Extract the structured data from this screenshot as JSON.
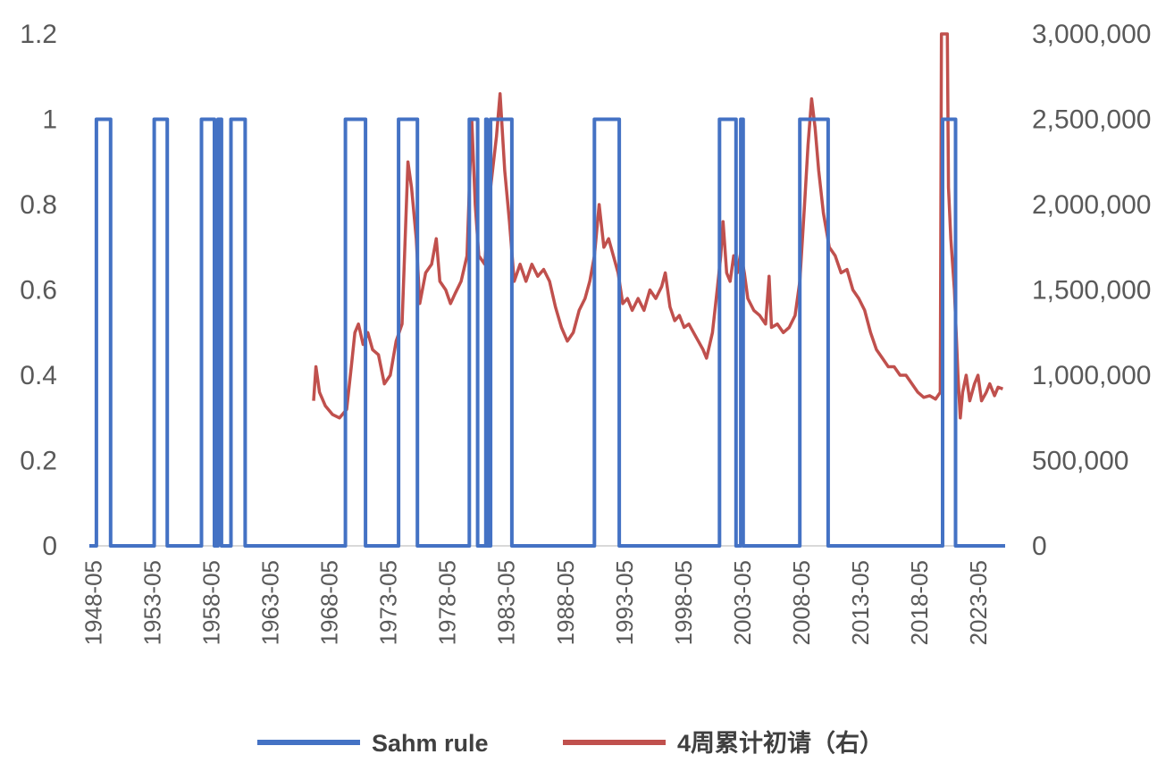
{
  "chart_data": {
    "type": "line",
    "title": "",
    "xlabel": "",
    "ylabel": "",
    "x_ticks": [
      "1948-05",
      "1953-05",
      "1958-05",
      "1963-05",
      "1968-05",
      "1973-05",
      "1978-05",
      "1983-05",
      "1988-05",
      "1993-05",
      "1998-05",
      "2003-05",
      "2008-05",
      "2013-05",
      "2018-05",
      "2023-05"
    ],
    "x_range": [
      1948.0,
      2025.6
    ],
    "y_left": {
      "ticks": [
        "0",
        "0.2",
        "0.4",
        "0.6",
        "0.8",
        "1",
        "1.2"
      ],
      "ylim": [
        0,
        1.2
      ]
    },
    "y_right": {
      "ticks": [
        "0",
        "500,000",
        "1,000,000",
        "1,500,000",
        "2,000,000",
        "2,500,000",
        "3,000,000"
      ],
      "ylim": [
        0,
        3000000
      ]
    },
    "grid": false,
    "legend_position": "bottom",
    "colors": {
      "sahm": "#4472C4",
      "claims": "#C0504D",
      "axis": "#D9D9D9",
      "text": "#595959"
    },
    "series": [
      {
        "name": "Sahm rule",
        "axis": "left",
        "step": true,
        "points": [
          [
            1948.0,
            0
          ],
          [
            1948.6,
            0
          ],
          [
            1948.6,
            1
          ],
          [
            1949.8,
            1
          ],
          [
            1949.8,
            0
          ],
          [
            1953.5,
            0
          ],
          [
            1953.5,
            1
          ],
          [
            1954.6,
            1
          ],
          [
            1954.6,
            0
          ],
          [
            1957.5,
            0
          ],
          [
            1957.5,
            1
          ],
          [
            1958.6,
            1
          ],
          [
            1958.6,
            0
          ],
          [
            1958.9,
            0
          ],
          [
            1958.9,
            1
          ],
          [
            1959.2,
            1
          ],
          [
            1959.2,
            0
          ],
          [
            1960.0,
            0
          ],
          [
            1960.0,
            1
          ],
          [
            1961.2,
            1
          ],
          [
            1961.2,
            0
          ],
          [
            1969.7,
            0
          ],
          [
            1969.7,
            1
          ],
          [
            1971.4,
            1
          ],
          [
            1971.4,
            0
          ],
          [
            1974.2,
            0
          ],
          [
            1974.2,
            1
          ],
          [
            1975.8,
            1
          ],
          [
            1975.8,
            0
          ],
          [
            1980.2,
            0
          ],
          [
            1980.2,
            1
          ],
          [
            1980.9,
            1
          ],
          [
            1980.9,
            0
          ],
          [
            1981.6,
            0
          ],
          [
            1981.6,
            1
          ],
          [
            1981.7,
            1
          ],
          [
            1981.7,
            0
          ],
          [
            1982.0,
            0
          ],
          [
            1982.0,
            1
          ],
          [
            1983.8,
            1
          ],
          [
            1983.8,
            0
          ],
          [
            1990.8,
            0
          ],
          [
            1990.8,
            1
          ],
          [
            1992.9,
            1
          ],
          [
            1992.9,
            0
          ],
          [
            2001.4,
            0
          ],
          [
            2001.4,
            1
          ],
          [
            2002.8,
            1
          ],
          [
            2002.8,
            0
          ],
          [
            2003.2,
            0
          ],
          [
            2003.2,
            1
          ],
          [
            2003.4,
            1
          ],
          [
            2003.4,
            0
          ],
          [
            2008.2,
            0
          ],
          [
            2008.2,
            1
          ],
          [
            2010.6,
            1
          ],
          [
            2010.6,
            0
          ],
          [
            2020.3,
            0
          ],
          [
            2020.3,
            1
          ],
          [
            2021.4,
            1
          ],
          [
            2021.4,
            0
          ],
          [
            2025.6,
            0
          ]
        ]
      },
      {
        "name": "4周累计初请（右）",
        "axis": "right",
        "step": false,
        "points": [
          [
            1967.0,
            850000
          ],
          [
            1967.2,
            1050000
          ],
          [
            1967.5,
            900000
          ],
          [
            1968.0,
            820000
          ],
          [
            1968.6,
            770000
          ],
          [
            1969.2,
            750000
          ],
          [
            1969.8,
            800000
          ],
          [
            1970.2,
            1050000
          ],
          [
            1970.5,
            1250000
          ],
          [
            1970.8,
            1300000
          ],
          [
            1971.2,
            1180000
          ],
          [
            1971.6,
            1250000
          ],
          [
            1972.0,
            1150000
          ],
          [
            1972.5,
            1120000
          ],
          [
            1973.0,
            950000
          ],
          [
            1973.5,
            1000000
          ],
          [
            1974.0,
            1200000
          ],
          [
            1974.5,
            1300000
          ],
          [
            1975.0,
            2250000
          ],
          [
            1975.3,
            2100000
          ],
          [
            1975.7,
            1800000
          ],
          [
            1976.0,
            1420000
          ],
          [
            1976.5,
            1600000
          ],
          [
            1977.0,
            1650000
          ],
          [
            1977.4,
            1800000
          ],
          [
            1977.7,
            1550000
          ],
          [
            1978.2,
            1500000
          ],
          [
            1978.6,
            1420000
          ],
          [
            1979.0,
            1480000
          ],
          [
            1979.5,
            1550000
          ],
          [
            1980.0,
            1700000
          ],
          [
            1980.4,
            2500000
          ],
          [
            1980.7,
            2000000
          ],
          [
            1981.0,
            1700000
          ],
          [
            1981.5,
            1650000
          ],
          [
            1982.0,
            2100000
          ],
          [
            1982.5,
            2400000
          ],
          [
            1982.8,
            2650000
          ],
          [
            1983.2,
            2200000
          ],
          [
            1983.6,
            1900000
          ],
          [
            1984.0,
            1550000
          ],
          [
            1984.5,
            1650000
          ],
          [
            1985.0,
            1550000
          ],
          [
            1985.5,
            1650000
          ],
          [
            1986.0,
            1580000
          ],
          [
            1986.5,
            1620000
          ],
          [
            1987.0,
            1550000
          ],
          [
            1987.5,
            1400000
          ],
          [
            1988.0,
            1280000
          ],
          [
            1988.5,
            1200000
          ],
          [
            1989.0,
            1250000
          ],
          [
            1989.5,
            1380000
          ],
          [
            1990.0,
            1450000
          ],
          [
            1990.4,
            1550000
          ],
          [
            1990.8,
            1700000
          ],
          [
            1991.2,
            2000000
          ],
          [
            1991.6,
            1750000
          ],
          [
            1992.0,
            1800000
          ],
          [
            1992.4,
            1700000
          ],
          [
            1992.8,
            1600000
          ],
          [
            1993.2,
            1420000
          ],
          [
            1993.6,
            1450000
          ],
          [
            1994.0,
            1380000
          ],
          [
            1994.5,
            1450000
          ],
          [
            1995.0,
            1380000
          ],
          [
            1995.5,
            1500000
          ],
          [
            1996.0,
            1450000
          ],
          [
            1996.5,
            1520000
          ],
          [
            1996.8,
            1600000
          ],
          [
            1997.2,
            1400000
          ],
          [
            1997.6,
            1320000
          ],
          [
            1998.0,
            1350000
          ],
          [
            1998.4,
            1280000
          ],
          [
            1998.8,
            1300000
          ],
          [
            1999.2,
            1250000
          ],
          [
            1999.6,
            1200000
          ],
          [
            2000.0,
            1150000
          ],
          [
            2000.3,
            1100000
          ],
          [
            2000.8,
            1250000
          ],
          [
            2001.2,
            1500000
          ],
          [
            2001.5,
            1700000
          ],
          [
            2001.7,
            1900000
          ],
          [
            2002.0,
            1600000
          ],
          [
            2002.3,
            1550000
          ],
          [
            2002.6,
            1700000
          ],
          [
            2002.9,
            1600000
          ],
          [
            2003.2,
            1720000
          ],
          [
            2003.5,
            1600000
          ],
          [
            2003.8,
            1450000
          ],
          [
            2004.3,
            1380000
          ],
          [
            2004.8,
            1350000
          ],
          [
            2005.3,
            1300000
          ],
          [
            2005.6,
            1580000
          ],
          [
            2005.8,
            1280000
          ],
          [
            2006.3,
            1300000
          ],
          [
            2006.8,
            1250000
          ],
          [
            2007.3,
            1280000
          ],
          [
            2007.8,
            1350000
          ],
          [
            2008.2,
            1550000
          ],
          [
            2008.6,
            2000000
          ],
          [
            2008.9,
            2350000
          ],
          [
            2009.2,
            2620000
          ],
          [
            2009.5,
            2450000
          ],
          [
            2009.8,
            2200000
          ],
          [
            2010.2,
            1950000
          ],
          [
            2010.7,
            1750000
          ],
          [
            2011.2,
            1700000
          ],
          [
            2011.7,
            1600000
          ],
          [
            2012.2,
            1620000
          ],
          [
            2012.7,
            1500000
          ],
          [
            2013.2,
            1450000
          ],
          [
            2013.7,
            1380000
          ],
          [
            2014.2,
            1250000
          ],
          [
            2014.7,
            1150000
          ],
          [
            2015.2,
            1100000
          ],
          [
            2015.7,
            1050000
          ],
          [
            2016.2,
            1050000
          ],
          [
            2016.7,
            1000000
          ],
          [
            2017.2,
            1000000
          ],
          [
            2017.7,
            950000
          ],
          [
            2018.2,
            900000
          ],
          [
            2018.7,
            870000
          ],
          [
            2019.2,
            880000
          ],
          [
            2019.7,
            860000
          ],
          [
            2020.1,
            900000
          ],
          [
            2020.2,
            3000000
          ],
          [
            2020.5,
            3000000
          ],
          [
            2020.7,
            3000000
          ],
          [
            2020.8,
            2100000
          ],
          [
            2021.0,
            1800000
          ],
          [
            2021.3,
            1500000
          ],
          [
            2021.6,
            1000000
          ],
          [
            2021.8,
            750000
          ],
          [
            2022.0,
            900000
          ],
          [
            2022.3,
            1000000
          ],
          [
            2022.6,
            850000
          ],
          [
            2023.0,
            950000
          ],
          [
            2023.3,
            1000000
          ],
          [
            2023.6,
            850000
          ],
          [
            2024.0,
            900000
          ],
          [
            2024.3,
            950000
          ],
          [
            2024.7,
            880000
          ],
          [
            2025.0,
            930000
          ],
          [
            2025.4,
            920000
          ]
        ]
      }
    ]
  }
}
